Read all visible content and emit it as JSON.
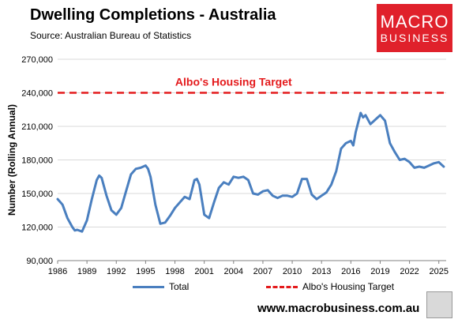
{
  "header": {
    "title": "Dwelling Completions - Australia",
    "source": "Source: Australian Bureau of Statistics"
  },
  "logo": {
    "line1": "MACRO",
    "line2": "BUSINESS",
    "color": "#e0212b"
  },
  "footer": {
    "website": "www.macrobusiness.com.au"
  },
  "legend": {
    "items": [
      "Total",
      "Albo's Housing Target"
    ]
  },
  "chart_data": {
    "type": "line",
    "ylabel": "Number (Rolling Annual)",
    "xlabel": "",
    "ylim": [
      90000,
      270000
    ],
    "xlim": [
      1986,
      2025.75
    ],
    "yticks": [
      90000,
      120000,
      150000,
      180000,
      210000,
      240000,
      270000
    ],
    "ytick_labels": [
      "90,000",
      "120,000",
      "150,000",
      "180,000",
      "210,000",
      "240,000",
      "270,000"
    ],
    "xticks": [
      1986,
      1989,
      1992,
      1995,
      1998,
      2001,
      2004,
      2007,
      2010,
      2013,
      2016,
      2019,
      2022,
      2025
    ],
    "xtick_labels": [
      "1986",
      "1989",
      "1992",
      "1995",
      "1998",
      "2001",
      "2004",
      "2007",
      "2010",
      "2013",
      "2016",
      "2019",
      "2022",
      "2025"
    ],
    "annotation": "Albo's Housing Target",
    "grid": "horizontal",
    "legend_position": "bottom",
    "series": [
      {
        "name": "Total",
        "color": "#4a7fbf",
        "style": "solid",
        "x": [
          1986.0,
          1986.5,
          1987.0,
          1987.5,
          1987.75,
          1988.0,
          1988.5,
          1989.0,
          1989.5,
          1990.0,
          1990.25,
          1990.5,
          1991.0,
          1991.5,
          1992.0,
          1992.5,
          1993.0,
          1993.5,
          1994.0,
          1994.5,
          1995.0,
          1995.25,
          1995.5,
          1996.0,
          1996.5,
          1997.0,
          1997.5,
          1998.0,
          1998.5,
          1999.0,
          1999.5,
          2000.0,
          2000.25,
          2000.5,
          2001.0,
          2001.5,
          2002.0,
          2002.5,
          2003.0,
          2003.5,
          2004.0,
          2004.5,
          2005.0,
          2005.5,
          2006.0,
          2006.5,
          2007.0,
          2007.5,
          2008.0,
          2008.5,
          2009.0,
          2009.5,
          2010.0,
          2010.5,
          2011.0,
          2011.5,
          2012.0,
          2012.5,
          2013.0,
          2013.5,
          2014.0,
          2014.5,
          2015.0,
          2015.5,
          2016.0,
          2016.25,
          2016.5,
          2017.0,
          2017.25,
          2017.5,
          2018.0,
          2018.5,
          2019.0,
          2019.5,
          2020.0,
          2020.5,
          2021.0,
          2021.5,
          2022.0,
          2022.5,
          2023.0,
          2023.5,
          2024.0,
          2024.5,
          2025.0,
          2025.25,
          2025.5
        ],
        "y": [
          145000,
          140000,
          128000,
          120000,
          117000,
          117500,
          116000,
          126000,
          145000,
          162000,
          166000,
          164000,
          148000,
          135000,
          131000,
          137000,
          152000,
          167000,
          172000,
          173000,
          175000,
          172000,
          165000,
          140000,
          123000,
          124000,
          130000,
          137000,
          142000,
          147000,
          145000,
          162000,
          163000,
          158000,
          131000,
          128000,
          142000,
          155000,
          160000,
          158000,
          165000,
          164000,
          165000,
          162000,
          150000,
          149000,
          152000,
          153000,
          148000,
          146000,
          148000,
          148000,
          147000,
          150000,
          163000,
          163000,
          149000,
          145000,
          148000,
          151000,
          158000,
          170000,
          190000,
          195000,
          197000,
          193000,
          205000,
          222000,
          218000,
          220000,
          212000,
          216000,
          220000,
          215000,
          195000,
          187000,
          180000,
          181000,
          178000,
          173000,
          174000,
          173000,
          175000,
          177000,
          178000,
          176000,
          174000
        ]
      },
      {
        "name": "Albo's Housing Target",
        "color": "#e41a1c",
        "style": "dashed",
        "x": [
          1986.0,
          2025.75
        ],
        "y": [
          240000,
          240000
        ]
      }
    ]
  }
}
